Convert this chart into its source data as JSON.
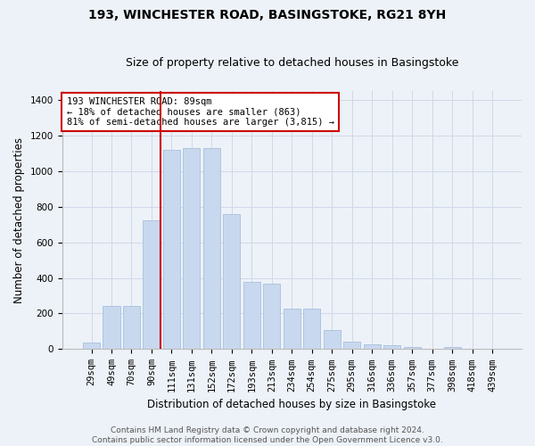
{
  "title": "193, WINCHESTER ROAD, BASINGSTOKE, RG21 8YH",
  "subtitle": "Size of property relative to detached houses in Basingstoke",
  "xlabel": "Distribution of detached houses by size in Basingstoke",
  "ylabel": "Number of detached properties",
  "categories": [
    "29sqm",
    "49sqm",
    "70sqm",
    "90sqm",
    "111sqm",
    "131sqm",
    "152sqm",
    "172sqm",
    "193sqm",
    "213sqm",
    "234sqm",
    "254sqm",
    "275sqm",
    "295sqm",
    "316sqm",
    "336sqm",
    "357sqm",
    "377sqm",
    "398sqm",
    "418sqm",
    "439sqm"
  ],
  "values": [
    35,
    240,
    240,
    725,
    1120,
    1130,
    1130,
    760,
    380,
    370,
    225,
    225,
    105,
    40,
    28,
    20,
    12,
    0,
    10,
    0,
    0
  ],
  "bar_color": "#c8d8ee",
  "bar_edge_color": "#a8c0dc",
  "vline_x_index": 3,
  "vline_color": "#cc0000",
  "annotation_text": "193 WINCHESTER ROAD: 89sqm\n← 18% of detached houses are smaller (863)\n81% of semi-detached houses are larger (3,815) →",
  "annotation_box_color": "#ffffff",
  "annotation_box_edge_color": "#cc0000",
  "ylim": [
    0,
    1450
  ],
  "yticks": [
    0,
    200,
    400,
    600,
    800,
    1000,
    1200,
    1400
  ],
  "grid_color": "#d0d8e8",
  "bg_color": "#edf2f8",
  "footer_text": "Contains HM Land Registry data © Crown copyright and database right 2024.\nContains public sector information licensed under the Open Government Licence v3.0.",
  "title_fontsize": 10,
  "subtitle_fontsize": 9,
  "xlabel_fontsize": 8.5,
  "ylabel_fontsize": 8.5,
  "tick_fontsize": 7.5,
  "annotation_fontsize": 7.5,
  "footer_fontsize": 6.5
}
